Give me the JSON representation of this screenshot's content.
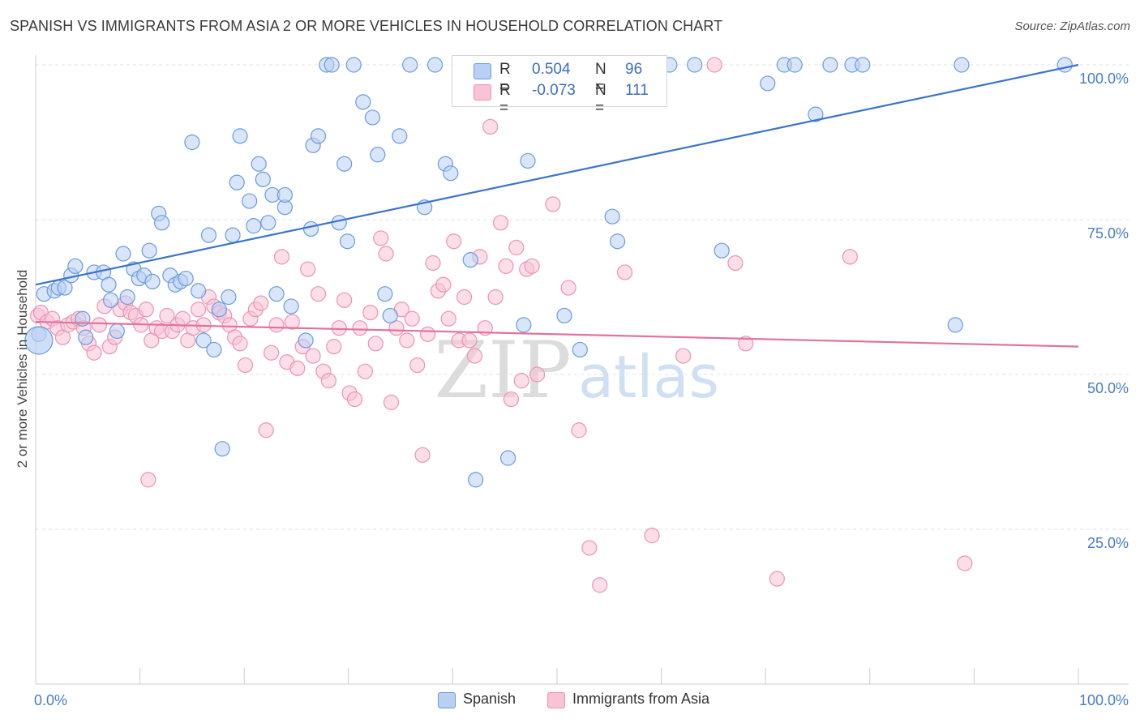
{
  "title": "SPANISH VS IMMIGRANTS FROM ASIA 2 OR MORE VEHICLES IN HOUSEHOLD CORRELATION CHART",
  "source": "Source: ZipAtlas.com",
  "watermark": {
    "zip": "ZIP",
    "atlas": "atlas"
  },
  "colors": {
    "blue": "#6a9be0",
    "blue_fill": "#b9d0f3",
    "blue_line": "#3a75cc",
    "pink": "#ee93b4",
    "pink_fill": "#f7c3d5",
    "pink_line": "#e3729c",
    "value_text": "#3a6fc4"
  },
  "legend": {
    "rows": [
      {
        "r_label": "R =",
        "r_value": "0.504",
        "n_label": "N =",
        "n_value": "96"
      },
      {
        "r_label": "R =",
        "r_value": "-0.073",
        "n_label": "N =",
        "n_value": "111"
      }
    ]
  },
  "bottom_legend": {
    "spanish": "Spanish",
    "asia": "Immigrants from Asia"
  },
  "chart_data": {
    "type": "scatter",
    "xlabel": "",
    "ylabel": "2 or more Vehicles in Household",
    "xlim": [
      0,
      100
    ],
    "ylim": [
      0,
      100
    ],
    "x_tick_labels": [
      "0.0%",
      "100.0%"
    ],
    "y_ticks": [
      25,
      50,
      75,
      100
    ],
    "y_tick_labels": [
      "25.0%",
      "50.0%",
      "75.0%",
      "100.0%"
    ],
    "grid": true,
    "legend_position": "top-center",
    "series": [
      {
        "name": "Spanish",
        "r": 0.504,
        "n": 96,
        "trend": {
          "x": [
            0,
            100
          ],
          "y": [
            64.5,
            100
          ]
        },
        "points": [
          [
            0.3,
            56.5
          ],
          [
            0.8,
            63
          ],
          [
            1.8,
            63.5
          ],
          [
            2.2,
            64
          ],
          [
            2.8,
            64
          ],
          [
            3.4,
            66
          ],
          [
            3.8,
            67.5
          ],
          [
            4.5,
            59
          ],
          [
            4.8,
            56
          ],
          [
            5.6,
            66.5
          ],
          [
            6.5,
            66.5
          ],
          [
            7,
            64.5
          ],
          [
            7.2,
            62
          ],
          [
            7.8,
            57
          ],
          [
            8.4,
            69.5
          ],
          [
            8.8,
            62.5
          ],
          [
            9.4,
            67
          ],
          [
            9.9,
            65.5
          ],
          [
            10.4,
            66
          ],
          [
            10.9,
            70
          ],
          [
            11.2,
            65
          ],
          [
            11.8,
            76
          ],
          [
            12.1,
            74.5
          ],
          [
            12.9,
            66
          ],
          [
            13.4,
            64.5
          ],
          [
            13.9,
            65
          ],
          [
            14.4,
            65.5
          ],
          [
            15,
            87.5
          ],
          [
            15.6,
            63.5
          ],
          [
            16.1,
            55.5
          ],
          [
            16.6,
            72.5
          ],
          [
            17.1,
            54
          ],
          [
            17.6,
            60.5
          ],
          [
            17.9,
            38
          ],
          [
            18.5,
            62.5
          ],
          [
            18.9,
            72.5
          ],
          [
            19.3,
            81
          ],
          [
            19.6,
            88.5
          ],
          [
            20.5,
            78
          ],
          [
            20.9,
            74
          ],
          [
            21.4,
            84
          ],
          [
            21.8,
            81.5
          ],
          [
            22.3,
            74.5
          ],
          [
            22.7,
            79
          ],
          [
            23.1,
            63
          ],
          [
            23.9,
            77
          ],
          [
            23.9,
            79
          ],
          [
            24.5,
            61
          ],
          [
            25.9,
            55.5
          ],
          [
            26.4,
            73.5
          ],
          [
            26.6,
            87
          ],
          [
            27.1,
            88.5
          ],
          [
            27.9,
            100
          ],
          [
            28.4,
            100
          ],
          [
            29.1,
            74.5
          ],
          [
            29.6,
            84
          ],
          [
            29.9,
            71.5
          ],
          [
            30.5,
            100
          ],
          [
            31.4,
            94
          ],
          [
            32.3,
            91.5
          ],
          [
            32.8,
            85.5
          ],
          [
            33.5,
            63
          ],
          [
            34,
            59.5
          ],
          [
            34.9,
            88.5
          ],
          [
            35.9,
            100
          ],
          [
            37.3,
            77
          ],
          [
            38.3,
            100
          ],
          [
            39.3,
            84
          ],
          [
            39.8,
            82.5
          ],
          [
            41.7,
            68.5
          ],
          [
            42.2,
            33
          ],
          [
            45.3,
            36.5
          ],
          [
            46.8,
            58
          ],
          [
            47.2,
            84.5
          ],
          [
            50.7,
            59.5
          ],
          [
            52.2,
            54
          ],
          [
            53.8,
            100
          ],
          [
            55.3,
            75.5
          ],
          [
            55.8,
            71.5
          ],
          [
            60.8,
            100
          ],
          [
            63.2,
            100
          ],
          [
            65.8,
            70
          ],
          [
            70.2,
            97
          ],
          [
            71.8,
            100
          ],
          [
            72.8,
            100
          ],
          [
            74.8,
            92
          ],
          [
            76.2,
            100
          ],
          [
            78.3,
            100
          ],
          [
            79.3,
            100
          ],
          [
            88.2,
            58
          ],
          [
            88.8,
            100
          ],
          [
            98.7,
            100
          ],
          [
            44.8,
            100
          ],
          [
            52.8,
            100
          ],
          [
            55.5,
            100
          ],
          [
            56.7,
            100
          ]
        ]
      },
      {
        "name": "Immigrants from Asia",
        "r": -0.073,
        "n": 111,
        "trend": {
          "x": [
            0,
            100
          ],
          "y": [
            58.5,
            54.5
          ]
        },
        "points": [
          [
            0.2,
            59.5
          ],
          [
            0.5,
            60
          ],
          [
            1.1,
            58.5
          ],
          [
            1.6,
            59
          ],
          [
            2.1,
            57.5
          ],
          [
            2.6,
            56
          ],
          [
            3.1,
            58
          ],
          [
            3.6,
            58.5
          ],
          [
            4.1,
            59
          ],
          [
            4.6,
            57.5
          ],
          [
            5.1,
            55
          ],
          [
            5.6,
            53.5
          ],
          [
            6.1,
            58
          ],
          [
            6.6,
            61
          ],
          [
            7.1,
            54.5
          ],
          [
            7.6,
            56
          ],
          [
            8.1,
            60.5
          ],
          [
            8.6,
            61.5
          ],
          [
            9.1,
            60
          ],
          [
            9.6,
            59.5
          ],
          [
            10.1,
            58
          ],
          [
            10.6,
            60.5
          ],
          [
            11.1,
            55.5
          ],
          [
            11.6,
            57.5
          ],
          [
            12.1,
            57
          ],
          [
            12.6,
            59.5
          ],
          [
            13.1,
            57
          ],
          [
            13.6,
            58
          ],
          [
            14.1,
            59
          ],
          [
            14.6,
            55.5
          ],
          [
            10.8,
            33
          ],
          [
            15.1,
            57.5
          ],
          [
            15.6,
            60.5
          ],
          [
            16.1,
            58
          ],
          [
            16.6,
            62.5
          ],
          [
            17.1,
            61
          ],
          [
            17.6,
            60
          ],
          [
            18.1,
            59.5
          ],
          [
            18.6,
            58
          ],
          [
            19.1,
            56
          ],
          [
            19.6,
            55
          ],
          [
            20.1,
            51.5
          ],
          [
            20.6,
            59
          ],
          [
            21.1,
            60.5
          ],
          [
            21.6,
            61.5
          ],
          [
            22.1,
            41
          ],
          [
            22.6,
            53.5
          ],
          [
            23.1,
            58
          ],
          [
            23.6,
            69
          ],
          [
            24.1,
            52
          ],
          [
            24.6,
            58.5
          ],
          [
            25.1,
            51
          ],
          [
            25.6,
            54.5
          ],
          [
            26.1,
            67
          ],
          [
            26.6,
            53
          ],
          [
            27.1,
            63
          ],
          [
            27.6,
            50.5
          ],
          [
            28.1,
            49
          ],
          [
            28.6,
            54.5
          ],
          [
            29.1,
            57.5
          ],
          [
            29.6,
            62
          ],
          [
            30.1,
            47
          ],
          [
            30.6,
            46
          ],
          [
            31.1,
            57.5
          ],
          [
            31.6,
            50.5
          ],
          [
            32.1,
            60
          ],
          [
            32.6,
            55
          ],
          [
            33.1,
            72
          ],
          [
            33.6,
            69.5
          ],
          [
            34.1,
            45.5
          ],
          [
            34.6,
            57.5
          ],
          [
            35.1,
            60.5
          ],
          [
            35.6,
            55.5
          ],
          [
            36.1,
            59
          ],
          [
            36.6,
            51.5
          ],
          [
            37.1,
            37
          ],
          [
            37.6,
            56.5
          ],
          [
            38.1,
            68
          ],
          [
            38.6,
            63.5
          ],
          [
            39.1,
            64.5
          ],
          [
            39.6,
            59
          ],
          [
            40.1,
            71.5
          ],
          [
            40.6,
            55.5
          ],
          [
            41.1,
            62.5
          ],
          [
            41.6,
            55.5
          ],
          [
            42.1,
            53
          ],
          [
            42.6,
            69
          ],
          [
            43.1,
            57.5
          ],
          [
            43.6,
            90
          ],
          [
            44.1,
            62.5
          ],
          [
            44.6,
            74.5
          ],
          [
            45.1,
            67.5
          ],
          [
            45.6,
            46
          ],
          [
            46.1,
            70.5
          ],
          [
            46.6,
            49
          ],
          [
            47.1,
            67
          ],
          [
            47.6,
            67.5
          ],
          [
            48.1,
            50
          ],
          [
            49.6,
            77.5
          ],
          [
            51.1,
            64
          ],
          [
            52.1,
            41
          ],
          [
            53.1,
            22
          ],
          [
            54.1,
            16
          ],
          [
            56.5,
            66.5
          ],
          [
            59.1,
            24
          ],
          [
            62.1,
            53
          ],
          [
            65.1,
            100
          ],
          [
            67.1,
            68
          ],
          [
            68.1,
            55
          ],
          [
            71.1,
            17
          ],
          [
            78.1,
            69
          ],
          [
            89.1,
            19.5
          ]
        ]
      }
    ]
  }
}
